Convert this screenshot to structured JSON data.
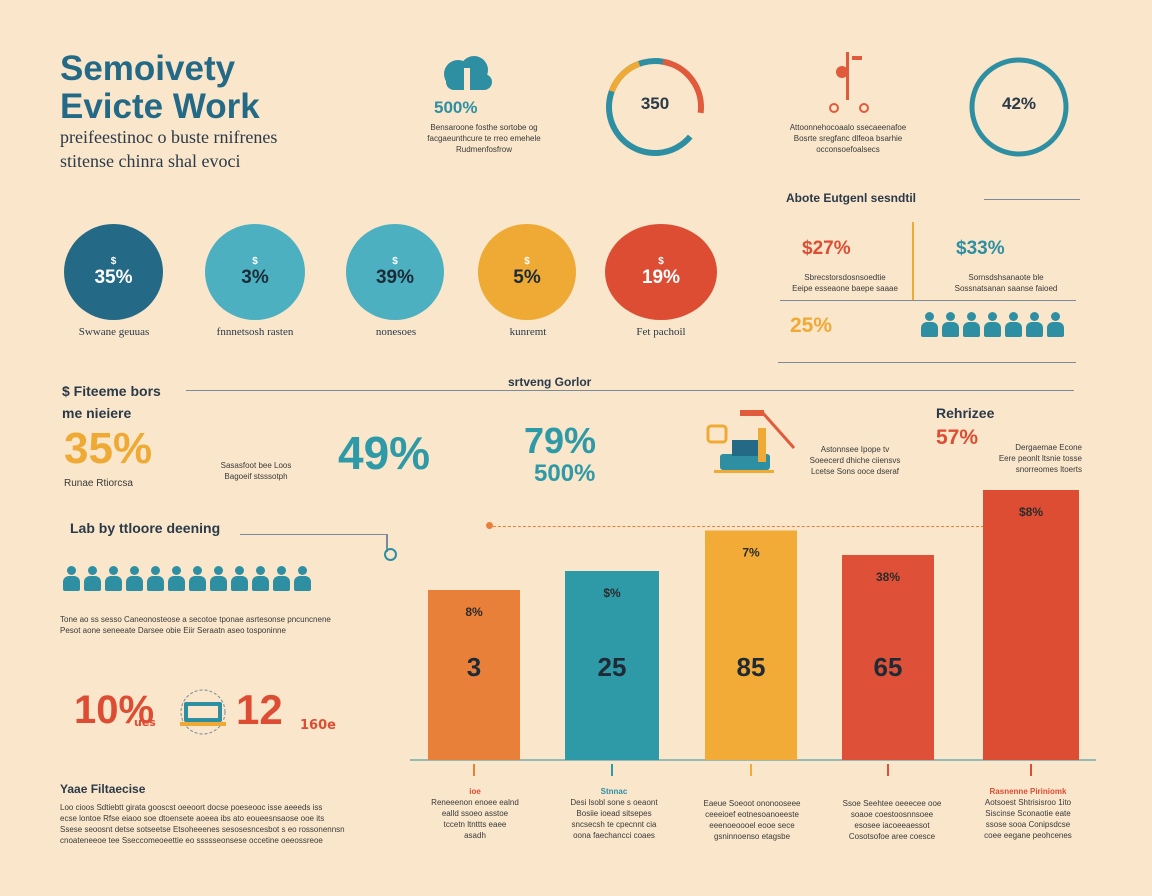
{
  "header": {
    "title_line1": "Semoivety",
    "title_line2": "Evicte Work",
    "subtitle_line1": "preifeestinoc o buste rnifrenes",
    "subtitle_line2": "stitense chinra shal evoci"
  },
  "top_stats": [
    {
      "value": "500%",
      "desc1": "Bensaroone fosthe sortobe og",
      "desc2": "facgaeunthcure te rreo emehele",
      "desc3": "Rudmenfosfrow",
      "color": "#2e8fa3"
    },
    {
      "value": "350",
      "desc1": "",
      "desc2": "",
      "desc3": "",
      "color": "#2e8fa3"
    },
    {
      "value": "",
      "desc1": "Attoonnehocoaalo ssecaeenafoe",
      "desc2": "Bosrte sregfanc dlfeoa bsarhie",
      "desc3": "occonsoefoalsecs",
      "color": "#e05a3c"
    },
    {
      "value": "42%",
      "desc1": "",
      "desc2": "",
      "desc3": "",
      "color": "#2e8fa3"
    }
  ],
  "circles": [
    {
      "tag": "$",
      "value": "35%",
      "label": "Swwane geuuas",
      "color": "#246a86"
    },
    {
      "tag": "$",
      "value": "3%",
      "label": "fnnnetsosh rasten",
      "color": "#4cb0c0"
    },
    {
      "tag": "$",
      "value": "39%",
      "label": "nonesoes",
      "color": "#4cb0c0"
    },
    {
      "tag": "$",
      "value": "5%",
      "label": "kunremt",
      "color": "#eeaa35"
    },
    {
      "tag": "$",
      "value": "19%",
      "label": "Fet pachoil",
      "color": "#dd4d33"
    }
  ],
  "right_panel": {
    "heading": "Abote Eutgenl sesndtil",
    "stat1": "$27%",
    "stat1_desc1": "Sbrecstorsdosnsoedtie",
    "stat1_desc2": "Eeipe esseaone baepe saaae",
    "stat2": "$33%",
    "stat2_desc1": "Sornsdshsanaote ble",
    "stat2_desc2": "Sossnatsanan saanse faioed",
    "stat3": "25%"
  },
  "mid": {
    "left_heading": "$ Fiteeme bors",
    "center_heading": "srtveng Gorlor",
    "sub_heading": "me nieiere",
    "pct1": "35%",
    "pct1_caption": "Runae Rtiorcsa",
    "pct1_desc1": "Sasasfoot bee Loos",
    "pct1_desc2": "Bagoeif stsssotph",
    "pct2": "49%",
    "pct3": "79%",
    "pct4": "500%",
    "icon_desc1": "Astonnsee Ipope tv",
    "icon_desc2": "Soeecerd dhiche ciiensvs",
    "icon_desc3": "Lcetse Sons ooce dseraf",
    "right_heading": "Rehrizee",
    "right_pct": "57%",
    "right_desc1": "Dergaemae Econe",
    "right_desc2": "Eere peonlt ltsnie tosse",
    "right_desc3": "snorreomes ltoerts"
  },
  "left_lower": {
    "heading": "Lab by ttloore deening",
    "desc1": "Tone ao ss sesso Caneonosteose a secotoe tponae asrtesonse pncuncnene",
    "desc2": "Pesot aone seneeate Darsee obie Eiir Seraatn aseo tosponinne",
    "pct1": "10%",
    "pct1_unit": "ues",
    "pct2": "12",
    "pct2_unit": "160e",
    "note_heading": "Yaae Filtaecise",
    "note1": "Loo cioos Sdtiebtt girata gooscst oeeoort docse poeseooc isse aeeeds iss",
    "note2": "ecse lontoe Rfse eiaoo soe dtoensete aoeea ibs ato eoueesnsaose ooe its",
    "note3": "Ssese seoosnt detse sotseetse Etsoheeenes sesosesncesbot s eo rossonennsn",
    "note4": "cnoateneeoe tee Sseccomeoeettie eo ssssseonsese occetine oeeossreoe"
  },
  "chart_data": {
    "type": "bar",
    "categories": [
      "3",
      "25",
      "85",
      "65",
      "$8%"
    ],
    "values": [
      3,
      25,
      85,
      65,
      100
    ],
    "top_labels": [
      "8%",
      "$%",
      "7%",
      "38%",
      "$8%"
    ],
    "colors": [
      "#e8803a",
      "#2e9aa8",
      "#f1ab36",
      "#de5138",
      "#dd4d33"
    ],
    "title": "",
    "xlabel": "",
    "ylabel": ""
  },
  "bar_notes": [
    {
      "title": "ioe",
      "line1": "Reneeenon enoee ealnd",
      "line2": "ealld ssoeo asstoe",
      "line3": "tccetn ltnttts eaee",
      "line4": "asadh"
    },
    {
      "title": "Stnnac",
      "line1": "Desi lsobl sone s oeaont",
      "line2": "Bosiie ioead sitsepes",
      "line3": "sncsecsh te cpecnnt cia",
      "line4": "oona faechancci coaes"
    },
    {
      "title": "",
      "line1": "Eaeue Soeoot ononooseee",
      "line2": "ceeeioef eotnesoanoeeste",
      "line3": "eeenoeoooel eooe sece",
      "line4": "gsninnoenso etagsbe"
    },
    {
      "title": "",
      "line1": "Ssoe Seehtee oeeecee ooe",
      "line2": "soaoe coestoosnnsoee",
      "line3": "esosee iacoeeaessot",
      "line4": "Cosotsofoe aree coesce"
    },
    {
      "title": "Rasnenne Piriniomk",
      "line1": "Aotsoest Shtrisisroo 1ito",
      "line2": "Siscinse Sconaotie eate",
      "line3": "ssose sooa Conipsdcse",
      "line4": "coee eegane peohcenes"
    }
  ]
}
